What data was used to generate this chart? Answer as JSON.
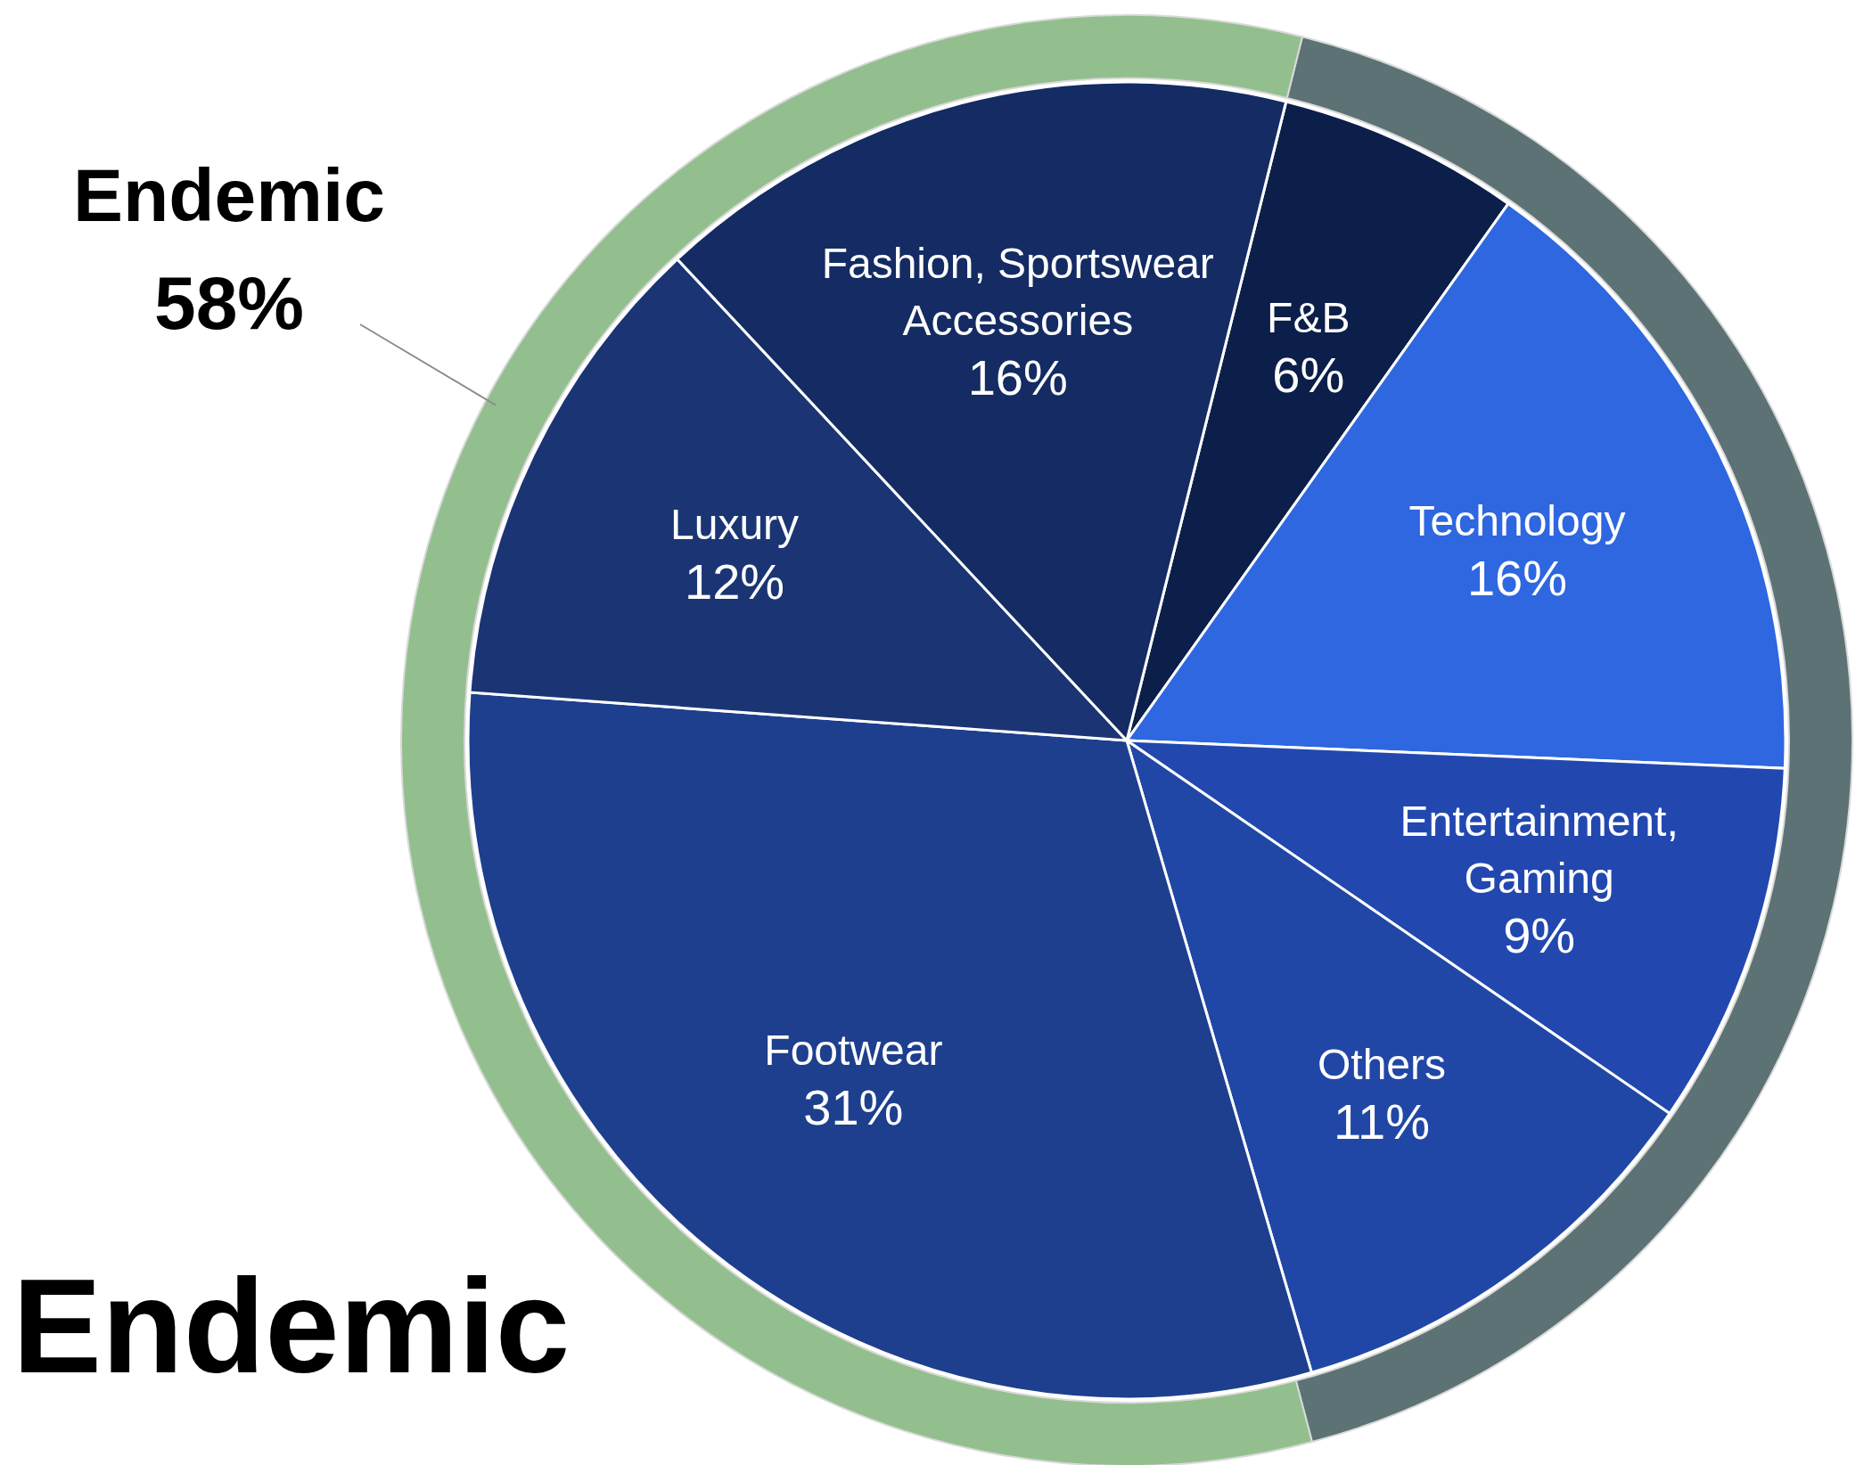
{
  "chart_data": [
    {
      "type": "pie",
      "categories": [
        "F&B",
        "Technology",
        "Entertainment, Gaming",
        "Others",
        "Footwear",
        "Luxury",
        "Fashion, Sportswear Accessories"
      ],
      "values": [
        6,
        16,
        9,
        11,
        31,
        12,
        16
      ],
      "value_labels": [
        "6%",
        "16%",
        "9%",
        "11%",
        "31%",
        "12%",
        "16%"
      ],
      "colors": [
        "#0c1f4a",
        "#2e67e0",
        "#2248b0",
        "#2147a6",
        "#1e3f8e",
        "#1b3574",
        "#142b63"
      ],
      "annotations": [
        "Endemic"
      ]
    },
    {
      "type": "donut",
      "categories": [
        null,
        "Endemic"
      ],
      "values": [
        42,
        58
      ],
      "value_labels": [
        null,
        "58%"
      ],
      "colors": [
        "#5c7275",
        "#93bf8f"
      ]
    }
  ]
}
